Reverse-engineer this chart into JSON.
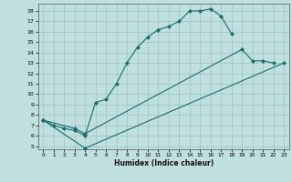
{
  "xlabel": "Humidex (Indice chaleur)",
  "background_color": "#c0e0e0",
  "line_color": "#1a6b6b",
  "xlim": [
    -0.5,
    23.5
  ],
  "ylim": [
    4.7,
    18.7
  ],
  "xticks": [
    0,
    1,
    2,
    3,
    4,
    5,
    6,
    7,
    8,
    9,
    10,
    11,
    12,
    13,
    14,
    15,
    16,
    17,
    18,
    19,
    20,
    21,
    22,
    23
  ],
  "yticks": [
    5,
    6,
    7,
    8,
    9,
    10,
    11,
    12,
    13,
    14,
    15,
    16,
    17,
    18
  ],
  "lines": [
    {
      "x": [
        0,
        1,
        2,
        3,
        4,
        5,
        6,
        7,
        8,
        9,
        10,
        11,
        12,
        13,
        14,
        15,
        16,
        17,
        18
      ],
      "y": [
        7.5,
        7.0,
        6.7,
        6.5,
        6.0,
        9.2,
        9.5,
        11.0,
        13.0,
        14.5,
        15.5,
        16.2,
        16.5,
        17.0,
        18.0,
        18.0,
        18.2,
        17.5,
        15.8
      ]
    },
    {
      "x": [
        0,
        3,
        4,
        19,
        20,
        21,
        22
      ],
      "y": [
        7.5,
        6.7,
        6.2,
        14.3,
        13.2,
        13.2,
        13.0
      ]
    },
    {
      "x": [
        0,
        4,
        23
      ],
      "y": [
        7.5,
        4.8,
        13.0
      ]
    }
  ]
}
